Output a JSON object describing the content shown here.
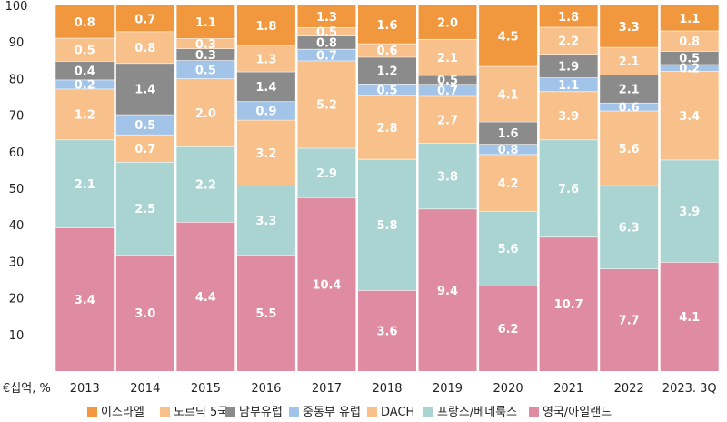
{
  "chart_data": {
    "type": "bar",
    "stacked": true,
    "normalized": true,
    "ylabel": "€십억, %",
    "ylim": [
      0,
      100
    ],
    "yticks": [
      10,
      20,
      30,
      40,
      50,
      60,
      70,
      80,
      90,
      100
    ],
    "grid": false,
    "legend_position": "bottom",
    "categories": [
      "2013",
      "2014",
      "2015",
      "2016",
      "2017",
      "2018",
      "2019",
      "2020",
      "2021",
      "2022",
      "2023. 3Q"
    ],
    "series": [
      {
        "name": "영국/아일랜드",
        "color": "#df8ca3",
        "values": [
          3.4,
          3.0,
          4.4,
          5.5,
          10.4,
          3.6,
          9.4,
          6.2,
          10.7,
          7.7,
          4.1
        ],
        "labels": [
          "3.4",
          "3.0",
          "4.4",
          "5.5",
          "10.4",
          "3.6",
          "9.4",
          "6.2",
          "10.7",
          "7.7",
          "4.1"
        ]
      },
      {
        "name": "프랑스/베네룩스",
        "color": "#a9d4d2",
        "values": [
          2.1,
          2.5,
          2.2,
          3.3,
          2.9,
          5.8,
          3.8,
          5.6,
          7.6,
          6.3,
          3.9
        ],
        "labels": [
          "2.1",
          "2.5",
          "2.2",
          "3.3",
          "2.9",
          "5.8",
          "3.8",
          "5.6",
          "7.6",
          "6.3",
          "3.9"
        ]
      },
      {
        "name": "DACH",
        "color": "#f8c08a",
        "values": [
          1.2,
          0.7,
          2.0,
          3.2,
          5.2,
          2.8,
          2.7,
          4.2,
          3.9,
          5.6,
          3.4
        ],
        "labels": [
          "1.2",
          "0.7",
          "2.0",
          "3.2",
          "5.2",
          "2.8",
          "2.7",
          "4.2",
          "3.9",
          "5.6",
          "3.4"
        ]
      },
      {
        "name": "중동부 유럽",
        "color": "#a3c4e9",
        "values": [
          0.2,
          0.5,
          0.5,
          0.9,
          0.7,
          0.5,
          0.7,
          0.8,
          1.1,
          0.6,
          0.2
        ],
        "labels": [
          "0.2",
          "0.5",
          "0.5",
          "0.9",
          "0.7",
          "0.5",
          "0.7",
          "0.8",
          "1.1",
          "0.6",
          "0.2"
        ]
      },
      {
        "name": "남부유럽",
        "color": "#8b8b8b",
        "values": [
          0.4,
          1.4,
          0.3,
          1.4,
          0.8,
          1.2,
          0.5,
          1.6,
          1.9,
          2.1,
          0.5
        ],
        "labels": [
          "0.4",
          "1.4",
          "0.3",
          "1.4",
          "0.8",
          "1.2",
          "0.5",
          "1.6",
          "1.9",
          "2.1",
          "0.5"
        ]
      },
      {
        "name": "노르딕 5국",
        "color": "#f8c08a",
        "values": [
          0.5,
          0.8,
          0.3,
          1.3,
          0.5,
          0.6,
          2.1,
          4.1,
          2.2,
          2.1,
          0.8
        ],
        "labels": [
          "0.5",
          "0.8",
          "0.3",
          "1.3",
          "0.5",
          "0.6",
          "2.1",
          "4.1",
          "2.2",
          "2.1",
          "0.8"
        ]
      },
      {
        "name": "이스라엘",
        "color": "#f1983f",
        "values": [
          0.8,
          0.7,
          1.1,
          1.8,
          1.3,
          1.6,
          2.0,
          4.5,
          1.8,
          3.3,
          1.1
        ],
        "labels": [
          "0.8",
          "0.7",
          "1.1",
          "1.8",
          "1.3",
          "1.6",
          "2.0",
          "4.5",
          "1.8",
          "3.3",
          "1.1"
        ]
      }
    ],
    "legend_order": [
      "이스라엘",
      "노르딕 5국",
      "남부유럽",
      "중동부 유럽",
      "DACH",
      "프랑스/베네룩스",
      "영국/아일랜드"
    ],
    "segment_percentages": {
      "2013": [
        39.2,
        24.1,
        13.9,
        2.5,
        5.1,
        6.3,
        8.9
      ],
      "2014": [
        31.8,
        25.4,
        7.5,
        5.5,
        14.0,
        8.7,
        7.1
      ],
      "2015": [
        40.8,
        20.6,
        18.6,
        5.0,
        3.2,
        2.8,
        9.0
      ],
      "2016": [
        31.8,
        18.9,
        18.0,
        5.1,
        8.1,
        7.2,
        10.9
      ],
      "2017": [
        47.5,
        13.5,
        23.9,
        3.2,
        3.6,
        2.3,
        6.0
      ],
      "2018": [
        22.1,
        35.9,
        17.3,
        3.3,
        7.3,
        3.7,
        10.4
      ],
      "2019": [
        44.4,
        18.0,
        12.8,
        3.3,
        2.4,
        9.9,
        9.2
      ],
      "2020": [
        23.3,
        20.5,
        15.5,
        2.8,
        6.1,
        15.2,
        16.6
      ],
      "2021": [
        36.7,
        26.6,
        13.2,
        3.8,
        6.4,
        7.4,
        5.9
      ],
      "2022": [
        28.0,
        22.8,
        20.4,
        2.2,
        7.6,
        7.6,
        11.4
      ],
      "2023. 3Q": [
        29.8,
        28.0,
        24.2,
        1.9,
        3.6,
        5.6,
        6.9
      ]
    }
  }
}
